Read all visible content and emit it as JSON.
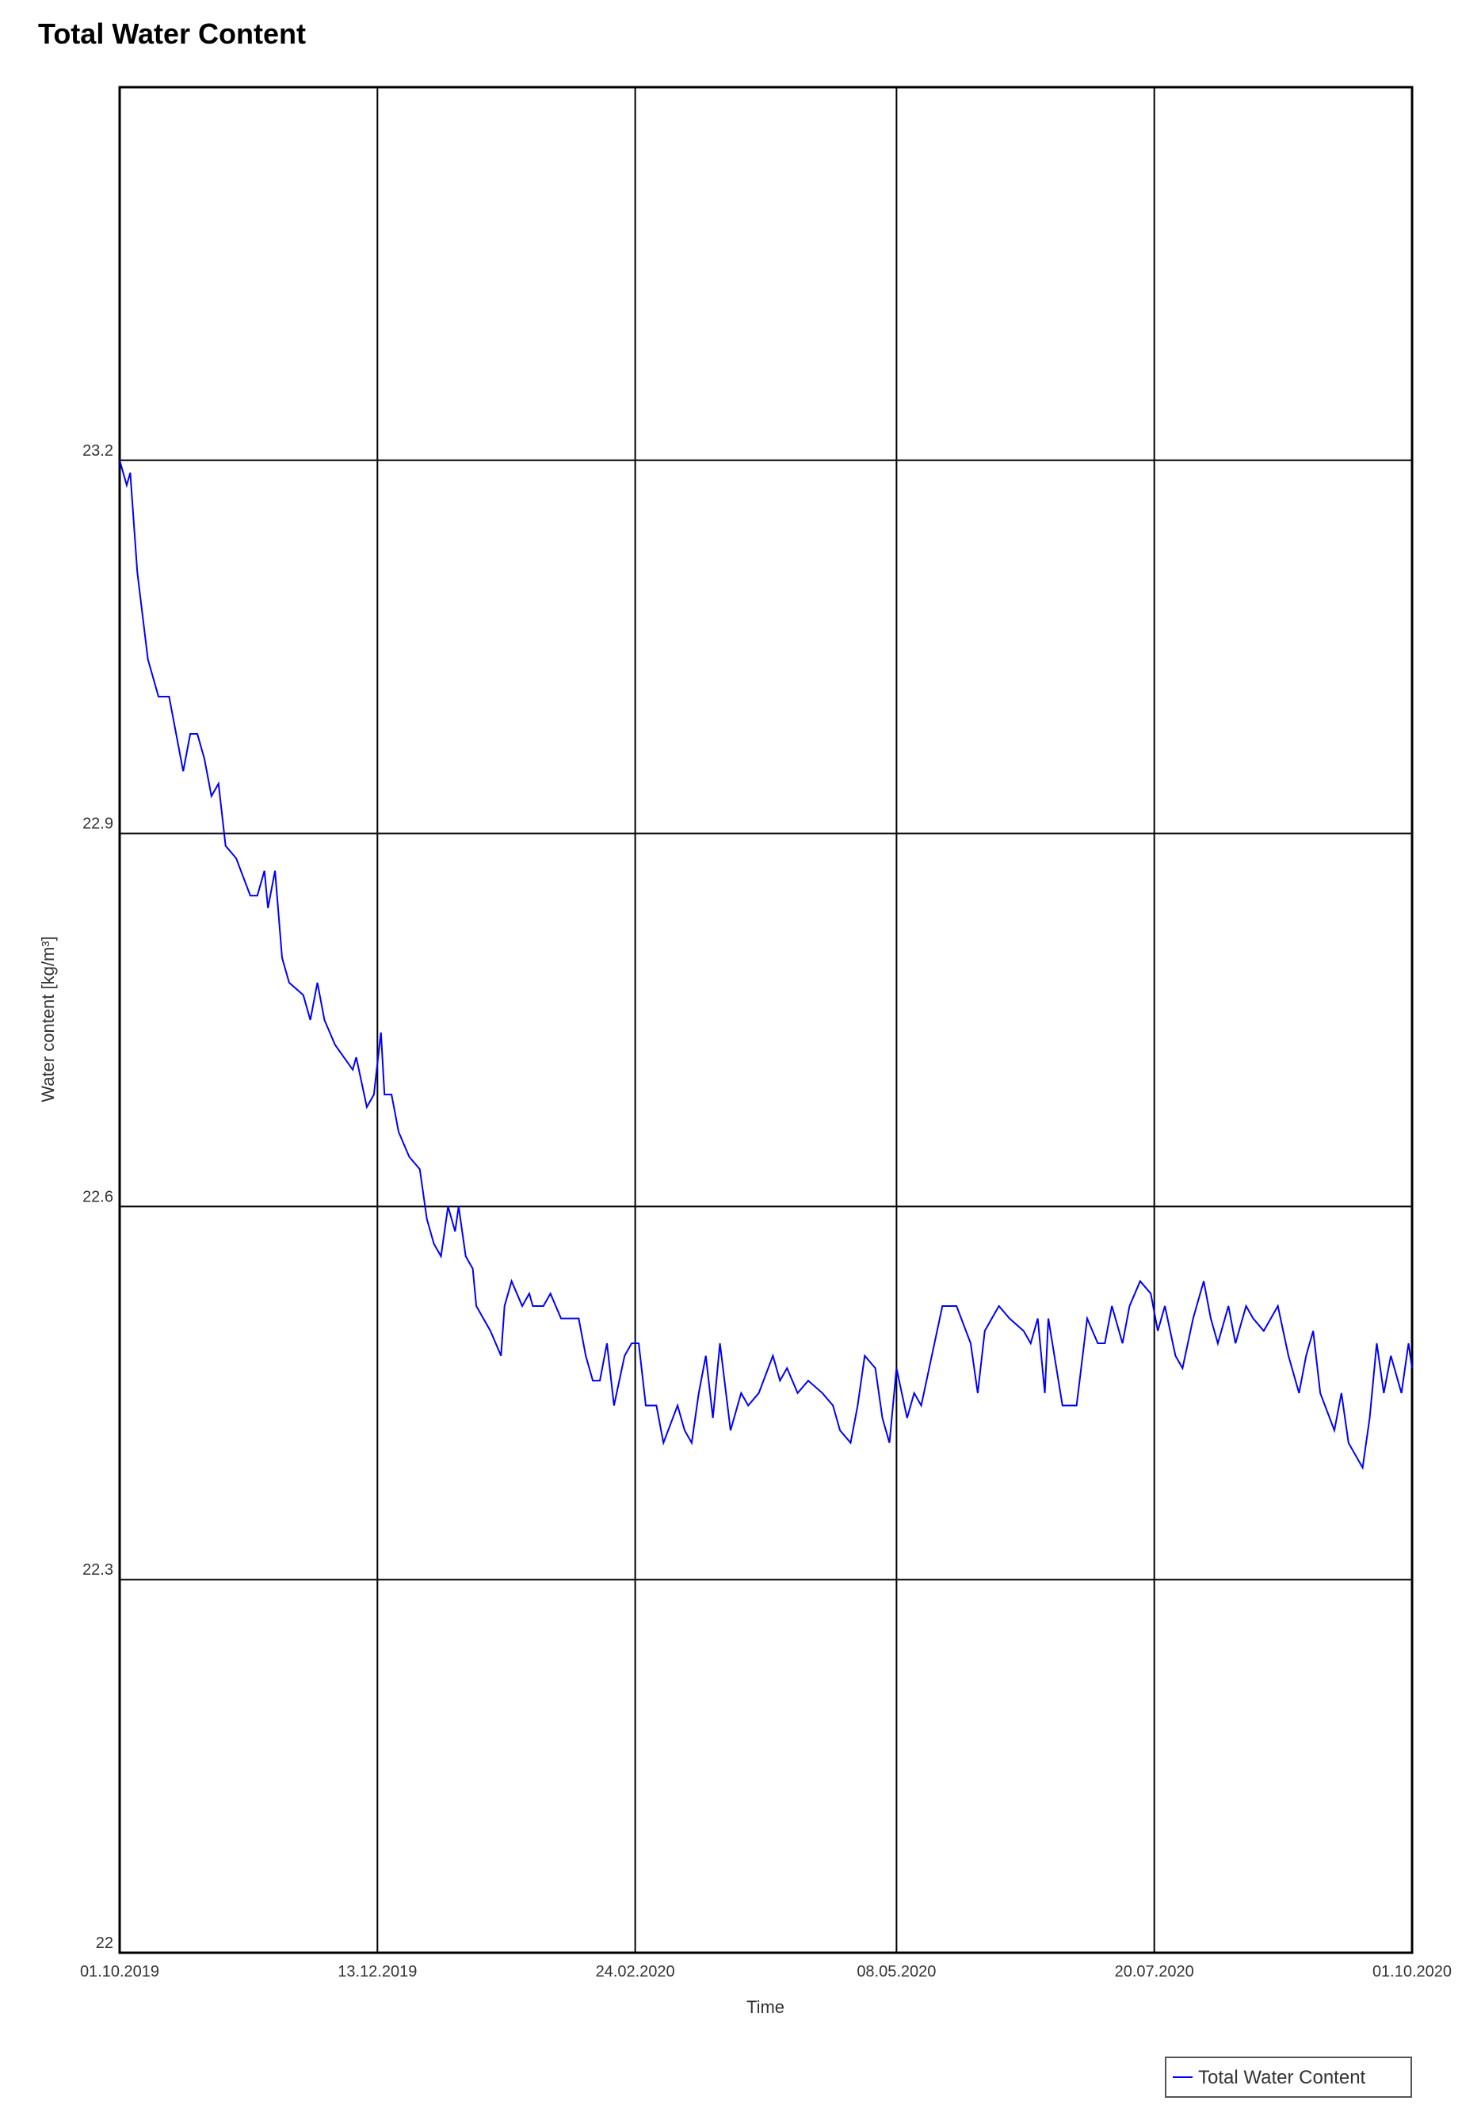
{
  "chart_data": {
    "type": "line",
    "title": "Total Water Content",
    "x_label": "Time",
    "y_label": "Water content [kg/m³]",
    "x": [
      "01.10.2019",
      "03.10.2019",
      "04.10.2019",
      "06.10.2019",
      "09.10.2019",
      "12.10.2019",
      "15.10.2019",
      "17.10.2019",
      "19.10.2019",
      "21.10.2019",
      "23.10.2019",
      "25.10.2019",
      "27.10.2019",
      "29.10.2019",
      "31.10.2019",
      "03.11.2019",
      "07.11.2019",
      "09.11.2019",
      "11.11.2019",
      "12.11.2019",
      "14.11.2019",
      "16.11.2019",
      "18.11.2019",
      "22.11.2019",
      "24.11.2019",
      "26.11.2019",
      "28.11.2019",
      "01.12.2019",
      "06.12.2019",
      "07.12.2019",
      "10.12.2019",
      "12.12.2019",
      "14.12.2019",
      "15.12.2019",
      "17.12.2019",
      "19.12.2019",
      "22.12.2019",
      "25.12.2019",
      "27.12.2019",
      "29.12.2019",
      "31.12.2019",
      "02.01.2020",
      "04.01.2020",
      "05.01.2020",
      "07.01.2020",
      "09.01.2020",
      "10.01.2020",
      "14.01.2020",
      "17.01.2020",
      "18.01.2020",
      "20.01.2020",
      "23.01.2020",
      "25.01.2020",
      "26.01.2020",
      "29.01.2020",
      "31.01.2020",
      "03.02.2020",
      "05.02.2020",
      "08.02.2020",
      "10.02.2020",
      "12.02.2020",
      "14.02.2020",
      "16.02.2020",
      "18.02.2020",
      "21.02.2020",
      "23.02.2020",
      "25.02.2020",
      "27.02.2020",
      "01.03.2020",
      "03.03.2020",
      "07.03.2020",
      "09.03.2020",
      "11.03.2020",
      "13.03.2020",
      "15.03.2020",
      "17.03.2020",
      "19.03.2020",
      "22.03.2020",
      "25.03.2020",
      "27.03.2020",
      "30.03.2020",
      "03.04.2020",
      "05.04.2020",
      "07.04.2020",
      "10.04.2020",
      "13.04.2020",
      "17.04.2020",
      "20.04.2020",
      "22.04.2020",
      "25.04.2020",
      "27.04.2020",
      "29.04.2020",
      "02.05.2020",
      "04.05.2020",
      "06.05.2020",
      "08.05.2020",
      "11.05.2020",
      "13.05.2020",
      "15.05.2020",
      "18.05.2020",
      "21.05.2020",
      "25.05.2020",
      "29.05.2020",
      "31.05.2020",
      "02.06.2020",
      "06.06.2020",
      "09.06.2020",
      "13.06.2020",
      "15.06.2020",
      "17.06.2020",
      "19.06.2020",
      "20.06.2020",
      "24.06.2020",
      "28.06.2020",
      "01.07.2020",
      "04.07.2020",
      "06.07.2020",
      "08.07.2020",
      "11.07.2020",
      "13.07.2020",
      "16.07.2020",
      "19.07.2020",
      "21.07.2020",
      "23.07.2020",
      "26.07.2020",
      "28.07.2020",
      "31.07.2020",
      "03.08.2020",
      "05.08.2020",
      "07.08.2020",
      "10.08.2020",
      "12.08.2020",
      "15.08.2020",
      "17.08.2020",
      "20.08.2020",
      "24.08.2020",
      "27.08.2020",
      "30.08.2020",
      "01.09.2020",
      "03.09.2020",
      "05.09.2020",
      "09.09.2020",
      "11.09.2020",
      "13.09.2020",
      "17.09.2020",
      "19.09.2020",
      "21.09.2020",
      "23.09.2020",
      "25.09.2020",
      "28.09.2020",
      "30.09.2020",
      "01.10.2020"
    ],
    "series": [
      {
        "name": "Total Water Content",
        "color": "#0000ff",
        "values": [
          23.2,
          23.18,
          23.19,
          23.11,
          23.04,
          23.01,
          23.01,
          22.98,
          22.95,
          22.98,
          22.98,
          22.96,
          22.93,
          22.94,
          22.89,
          22.88,
          22.85,
          22.85,
          22.87,
          22.84,
          22.87,
          22.8,
          22.78,
          22.77,
          22.75,
          22.78,
          22.75,
          22.73,
          22.71,
          22.72,
          22.68,
          22.69,
          22.74,
          22.69,
          22.69,
          22.66,
          22.64,
          22.63,
          22.59,
          22.57,
          22.56,
          22.6,
          22.58,
          22.6,
          22.56,
          22.55,
          22.52,
          22.5,
          22.48,
          22.52,
          22.54,
          22.52,
          22.53,
          22.52,
          22.52,
          22.53,
          22.51,
          22.51,
          22.51,
          22.48,
          22.46,
          22.46,
          22.49,
          22.44,
          22.48,
          22.49,
          22.49,
          22.44,
          22.44,
          22.41,
          22.44,
          22.42,
          22.41,
          22.45,
          22.48,
          22.43,
          22.49,
          22.42,
          22.45,
          22.44,
          22.45,
          22.48,
          22.46,
          22.47,
          22.45,
          22.46,
          22.45,
          22.44,
          22.42,
          22.41,
          22.44,
          22.48,
          22.47,
          22.43,
          22.41,
          22.47,
          22.43,
          22.45,
          22.44,
          22.48,
          22.52,
          22.52,
          22.49,
          22.45,
          22.5,
          22.52,
          22.51,
          22.5,
          22.49,
          22.51,
          22.45,
          22.51,
          22.44,
          22.44,
          22.51,
          22.49,
          22.49,
          22.52,
          22.49,
          22.52,
          22.54,
          22.53,
          22.5,
          22.52,
          22.48,
          22.47,
          22.51,
          22.54,
          22.51,
          22.49,
          22.52,
          22.49,
          22.52,
          22.51,
          22.5,
          22.52,
          22.48,
          22.45,
          22.48,
          22.5,
          22.45,
          22.42,
          22.45,
          22.41,
          22.39,
          22.43,
          22.49,
          22.45,
          22.48,
          22.45,
          22.49,
          22.47
        ]
      }
    ],
    "xlim": [
      "01.10.2019",
      "01.10.2020"
    ],
    "xticks": [
      "01.10.2019",
      "13.12.2019",
      "24.02.2020",
      "08.05.2020",
      "20.07.2020",
      "01.10.2020"
    ],
    "ylim": [
      22,
      23.5
    ],
    "yticks": [
      22,
      22.3,
      22.6,
      22.9,
      23.2
    ],
    "grid": true,
    "legend": "bottom-right"
  }
}
